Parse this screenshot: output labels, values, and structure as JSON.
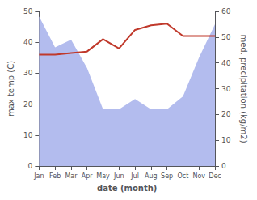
{
  "chart_data": {
    "type": "line",
    "xlabel": "date (month)",
    "ylabel": "max temp (C)",
    "y2label": "med. precipitation (kg/m2)",
    "categories": [
      "Jan",
      "Feb",
      "Mar",
      "Apr",
      "May",
      "Jun",
      "Jul",
      "Aug",
      "Sep",
      "Oct",
      "Nov",
      "Dec"
    ],
    "series": [
      {
        "type": "area",
        "color": "#b3bcee",
        "axis": "y2",
        "values": [
          58,
          46,
          49,
          38,
          22,
          22,
          26,
          22,
          22,
          27,
          42,
          55
        ]
      },
      {
        "type": "line",
        "color": "#c0392b",
        "values": [
          36,
          36,
          36.5,
          37,
          41,
          38,
          44,
          45.5,
          46,
          42,
          42,
          42
        ]
      }
    ],
    "ylim": [
      0,
      50
    ],
    "yticks": [
      0,
      10,
      20,
      30,
      40,
      50
    ],
    "y2lim": [
      0,
      60
    ],
    "y2ticks": [
      0,
      10,
      20,
      30,
      40,
      50,
      60
    ],
    "grid": false
  }
}
